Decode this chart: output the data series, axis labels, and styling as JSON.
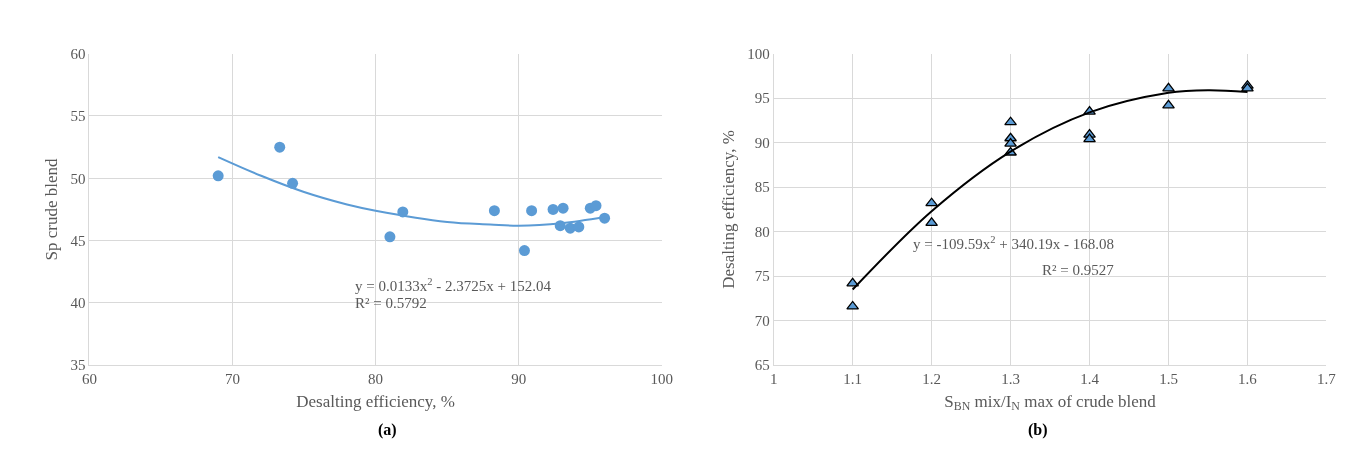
{
  "chart_data": [
    {
      "type": "scatter",
      "xlabel": "Desalting efficiency, %",
      "ylabel": "Sp crude blend",
      "xlim": [
        60,
        100
      ],
      "xticks": [
        60,
        70,
        80,
        90,
        100
      ],
      "ylim": [
        35,
        60
      ],
      "yticks": [
        35,
        40,
        45,
        50,
        55,
        60
      ],
      "grid": true,
      "series": [
        {
          "marker": "circle",
          "color": "#5b9bd5",
          "x": [
            69.0,
            73.3,
            74.2,
            81.0,
            81.9,
            88.3,
            90.4,
            90.9,
            92.4,
            93.1,
            92.9,
            93.6,
            94.2,
            95.0,
            95.4,
            96.0
          ],
          "values": [
            50.2,
            52.5,
            49.6,
            45.3,
            47.3,
            47.4,
            44.2,
            47.4,
            47.5,
            47.6,
            46.2,
            46.0,
            46.1,
            47.6,
            47.8,
            46.8
          ]
        },
        {
          "type": "line",
          "marker": "none",
          "color": "#5b9bd5",
          "x": [
            69,
            72,
            75,
            78,
            80,
            85,
            88,
            90,
            93,
            96
          ],
          "values": [
            51.7,
            50.2,
            48.9,
            47.9,
            47.4,
            46.5,
            46.3,
            46.2,
            46.4,
            46.9
          ]
        }
      ],
      "annotations": [
        "y = 0.0133x$^{2}$ - 2.3725x + 152.04",
        "R² = 0.5792",
        "(a)"
      ]
    },
    {
      "type": "scatter",
      "xlabel": "S$_{BN}$ mix/I$_{N}$ max of crude blend",
      "ylabel": "Desalting efficiency, %",
      "xlim": [
        1,
        1.7
      ],
      "xticks": [
        1,
        1.1,
        1.2,
        1.3,
        1.4,
        1.5,
        1.6,
        1.7
      ],
      "ylim": [
        65,
        100
      ],
      "yticks": [
        65,
        70,
        75,
        80,
        85,
        90,
        95,
        100
      ],
      "grid": true,
      "series": [
        {
          "marker": "triangle",
          "color": "#5b9bd5",
          "x": [
            1.1,
            1.1,
            1.2,
            1.2,
            1.3,
            1.3,
            1.3,
            1.3,
            1.4,
            1.4,
            1.4,
            1.5,
            1.5,
            1.6,
            1.6
          ],
          "values": [
            74.2,
            71.6,
            83.2,
            81.0,
            92.3,
            90.5,
            89.9,
            88.9,
            93.5,
            90.9,
            90.4,
            96.1,
            94.2,
            96.4,
            96.1
          ]
        },
        {
          "type": "line",
          "marker": "none",
          "color": "#000000",
          "x": [
            1.1,
            1.2,
            1.3,
            1.4,
            1.5,
            1.55,
            1.6
          ],
          "values": [
            73.5,
            82.3,
            89.0,
            93.4,
            95.6,
            95.9,
            95.7
          ]
        }
      ],
      "annotations": [
        "y = -109.59x$^{2}$ + 340.19x - 168.08",
        "R² = 0.9527",
        "(b)"
      ]
    }
  ]
}
